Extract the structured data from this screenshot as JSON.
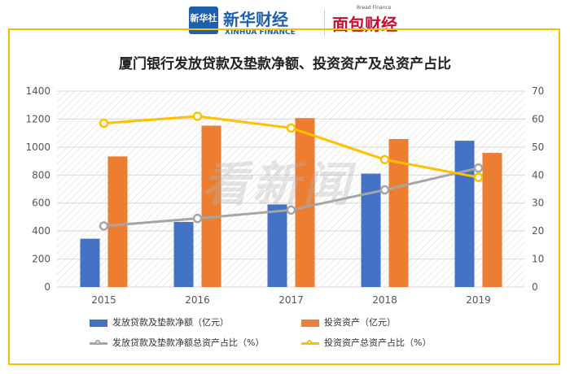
{
  "header": {
    "xinhua_logo_text": "新华社",
    "xinhua_brand": "新华财经",
    "xinhua_sub": "XINHUA FINANCE",
    "mianbao_brand": "面包财经",
    "mianbao_sub": "Bread Finance"
  },
  "watermark": "看新闻",
  "colors": {
    "bar1": "#4472c4",
    "bar2": "#ed7d31",
    "line1": "#a5a5a5",
    "line2": "#ffc000",
    "frame": "#f2c200"
  },
  "chart_data": {
    "type": "bar",
    "title": "厦门银行发放贷款及垫款净额、投资资产及总资产占比",
    "categories": [
      "2015",
      "2016",
      "2017",
      "2018",
      "2019"
    ],
    "y_left": {
      "lim": [
        0,
        1400
      ],
      "ticks": [
        "0",
        "200",
        "400",
        "600",
        "800",
        "1000",
        "1200",
        "1400"
      ]
    },
    "y_right": {
      "lim": [
        0,
        70
      ],
      "ticks": [
        "0",
        "10",
        "20",
        "30",
        "40",
        "50",
        "60",
        "70"
      ]
    },
    "series": [
      {
        "name": "发放贷款及垫款净额（亿元）",
        "kind": "bar",
        "axis": "left",
        "values": [
          345,
          465,
          590,
          810,
          1045
        ]
      },
      {
        "name": "投资资产（亿元）",
        "kind": "bar",
        "axis": "left",
        "values": [
          933,
          1153,
          1207,
          1057,
          958
        ]
      },
      {
        "name": "发放贷款及垫款净额总资产占比（%）",
        "kind": "line",
        "axis": "right",
        "values": [
          21.8,
          24.5,
          27.5,
          34.7,
          42.5
        ]
      },
      {
        "name": "投资资产总资产占比（%）",
        "kind": "line",
        "axis": "right",
        "values": [
          58.5,
          61.0,
          56.8,
          45.5,
          39.2
        ]
      }
    ],
    "grid": true,
    "legend_position": "bottom"
  }
}
